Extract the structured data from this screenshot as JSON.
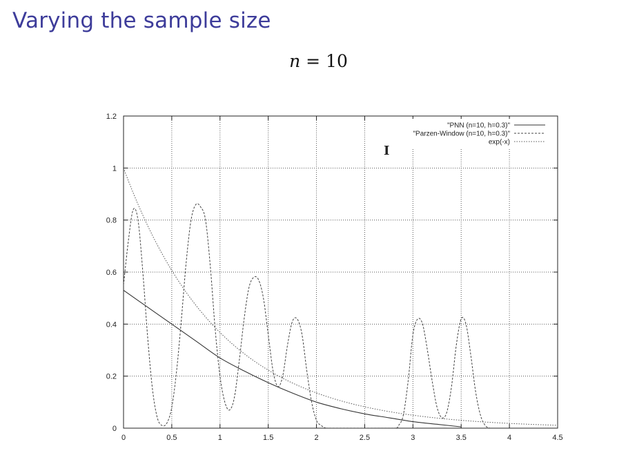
{
  "slide": {
    "title": "Varying the sample size",
    "subtitle_var": "n",
    "subtitle_rest": " = 10"
  },
  "chart_data": {
    "type": "line",
    "xlim": [
      0,
      4.5
    ],
    "ylim": [
      0,
      1.2
    ],
    "x_ticks": [
      "0",
      "0.5",
      "1",
      "1.5",
      "2",
      "2.5",
      "3",
      "3.5",
      "4",
      "4.5"
    ],
    "y_ticks": [
      "0",
      "0.2",
      "0.4",
      "0.6",
      "0.8",
      "1",
      "1.2"
    ],
    "grid": true,
    "legend_position": "top-right",
    "series": [
      {
        "name": "\"PNN (n=10, h=0.3)\"",
        "style": "solid",
        "color": "#333333",
        "x": [
          0,
          0.25,
          0.5,
          0.75,
          1.0,
          1.25,
          1.5,
          1.75,
          2.0,
          2.25,
          2.5,
          2.75,
          3.0,
          3.25,
          3.5
        ],
        "y": [
          0.53,
          0.465,
          0.4,
          0.335,
          0.27,
          0.22,
          0.175,
          0.135,
          0.1,
          0.075,
          0.055,
          0.04,
          0.025,
          0.015,
          0.005
        ]
      },
      {
        "name": "\"Parzen-Window (n=10, h=0.3)\"",
        "style": "dashed",
        "color": "#444444",
        "x": [
          0,
          0.05,
          0.1,
          0.15,
          0.2,
          0.25,
          0.3,
          0.35,
          0.4,
          0.45,
          0.5,
          0.55,
          0.6,
          0.65,
          0.7,
          0.75,
          0.8,
          0.85,
          0.9,
          0.95,
          1.0,
          1.05,
          1.1,
          1.15,
          1.2,
          1.25,
          1.3,
          1.35,
          1.4,
          1.45,
          1.5,
          1.55,
          1.6,
          1.65,
          1.7,
          1.75,
          1.8,
          1.85,
          1.9,
          1.95,
          2.0,
          2.05,
          2.1,
          2.15,
          2.2,
          2.5,
          2.8,
          2.85,
          2.9,
          2.95,
          3.0,
          3.05,
          3.1,
          3.15,
          3.2,
          3.25,
          3.3,
          3.35,
          3.4,
          3.45,
          3.5,
          3.55,
          3.6,
          3.65,
          3.7,
          3.75,
          3.8
        ],
        "y": [
          0.55,
          0.72,
          0.84,
          0.8,
          0.6,
          0.35,
          0.15,
          0.04,
          0.01,
          0.02,
          0.08,
          0.22,
          0.42,
          0.64,
          0.8,
          0.86,
          0.85,
          0.8,
          0.62,
          0.38,
          0.2,
          0.1,
          0.07,
          0.12,
          0.26,
          0.42,
          0.54,
          0.58,
          0.57,
          0.5,
          0.36,
          0.22,
          0.16,
          0.2,
          0.32,
          0.41,
          0.42,
          0.36,
          0.22,
          0.1,
          0.03,
          0.01,
          0.0,
          0.0,
          0.0,
          0.0,
          0.0,
          0.01,
          0.05,
          0.18,
          0.36,
          0.42,
          0.4,
          0.3,
          0.18,
          0.08,
          0.04,
          0.06,
          0.16,
          0.32,
          0.42,
          0.4,
          0.28,
          0.14,
          0.05,
          0.01,
          0.0
        ]
      },
      {
        "name": "exp(-x)",
        "style": "dotted",
        "color": "#555555",
        "function": "exp(-x)"
      }
    ]
  }
}
